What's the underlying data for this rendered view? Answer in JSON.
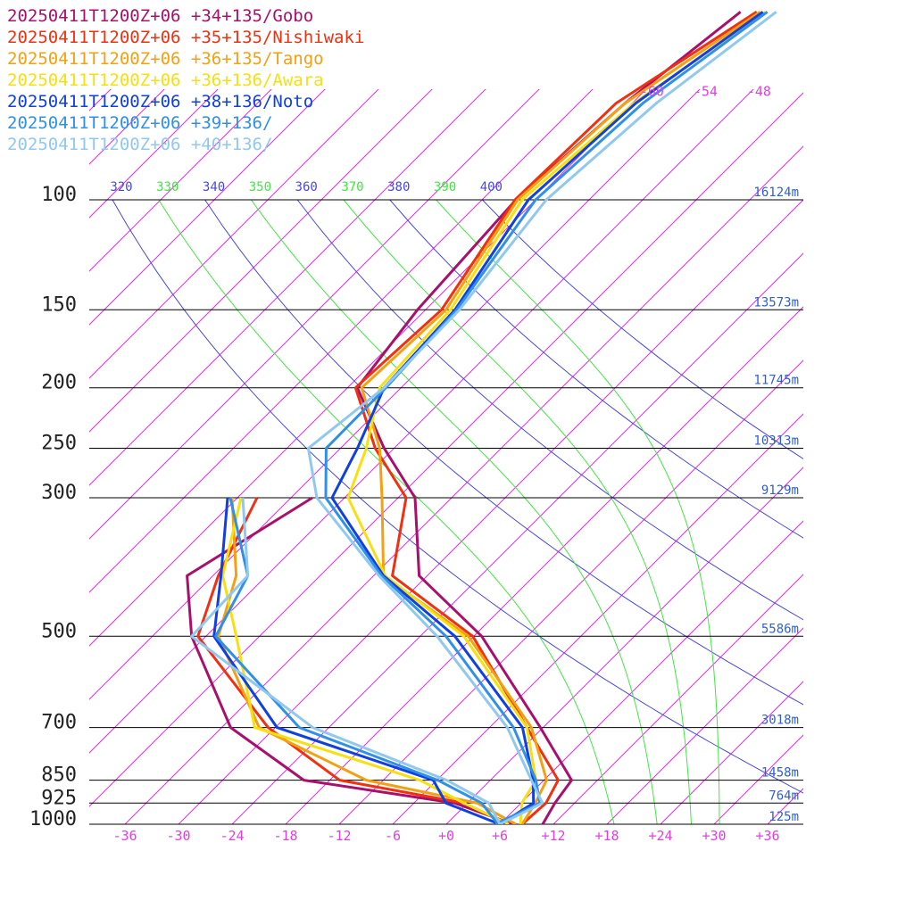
{
  "chart_data": {
    "type": "skewt",
    "pressure": [
      1000,
      925,
      850,
      700,
      500,
      400,
      300,
      250,
      200,
      150,
      100,
      70,
      50
    ],
    "series": [
      {
        "name": "20250411T1200Z+06 +34+135/Gobo",
        "color": "#a8106c",
        "values": [
          10.8,
          9.8,
          9.1,
          -0.3,
          -17.1,
          -30.9,
          -40.1,
          -49.1,
          -58.9,
          -60.9,
          -62.2,
          -60.8,
          -58.1
        ],
        "dewpoint": [
          7.5,
          -1.4,
          -20.9,
          -35,
          -49.6,
          -56.9,
          -51.6,
          null,
          null,
          null,
          null,
          null,
          null
        ]
      },
      {
        "name": "20250411T1200Z+06 +35+135/Nishiwaki",
        "color": "#f03010",
        "values": [
          8.5,
          8.8,
          7.6,
          -1.8,
          -18.1,
          -33.9,
          -41.1,
          -50.1,
          -59.1,
          -58.2,
          -62.3,
          -61.8,
          -56.3
        ],
        "dewpoint": [
          7,
          -0.4,
          -16.9,
          -30.8,
          -48.9,
          -53.4,
          -57.8,
          null,
          null,
          null,
          null,
          null,
          null
        ]
      },
      {
        "name": "20250411T1200Z+06 +36+135/Tango",
        "color": "#f5a010",
        "values": [
          8.5,
          7.6,
          6.3,
          -1.3,
          -18.6,
          -34.9,
          -43.8,
          -49.6,
          -58.4,
          -57.7,
          -62,
          -60.8,
          -55.9
        ],
        "dewpoint": [
          7.8,
          1.1,
          -13.9,
          -31.8,
          -46.6,
          -51.4,
          -60.6,
          null,
          null,
          null,
          null,
          null,
          null
        ]
      },
      {
        "name": "20250411T1200Z+06 +36+136/Awara",
        "color": "#f5e010",
        "values": [
          8.3,
          6.1,
          5.1,
          -1.8,
          -19.1,
          -34.7,
          -47.6,
          -51.1,
          -56.4,
          -57.2,
          -61.5,
          -59.8,
          -55.3
        ],
        "dewpoint": [
          7,
          -0.4,
          -7.9,
          -32.3,
          -44.6,
          -52.9,
          -59.6,
          null,
          null,
          null,
          null,
          null,
          null
        ]
      },
      {
        "name": "20250411T1200Z+06 +38+136/Noto",
        "color": "#1040e0",
        "values": [
          6,
          7.4,
          4.8,
          -2.3,
          -20.1,
          -34.9,
          -49.4,
          -52.1,
          -55.9,
          -56.7,
          -60.8,
          -59.6,
          -55.6
        ],
        "dewpoint": [
          6,
          -2.4,
          -6.4,
          -29.8,
          -47.1,
          -53.1,
          -61.1,
          null,
          null,
          null,
          null,
          null,
          null
        ]
      },
      {
        "name": "20250411T1200Z+06 +39+136/",
        "color": "#3090e8",
        "values": [
          5.5,
          8.1,
          5.1,
          -3.3,
          -21.1,
          -35.1,
          -50.1,
          -55.6,
          -55.7,
          -56.5,
          -60,
          -58.8,
          -55.1
        ],
        "dewpoint": [
          5.8,
          1.6,
          -5.9,
          -27.3,
          -46.9,
          -50.1,
          -60.8,
          null,
          null,
          null,
          null,
          null,
          null
        ]
      },
      {
        "name": "20250411T1200Z+06 +40+136/",
        "color": "#90c8f0",
        "values": [
          6,
          8.4,
          4.6,
          -4,
          -22.1,
          -35.4,
          -51.1,
          -57.6,
          -55.9,
          -56.2,
          -58.8,
          -57.3,
          -54.1
        ],
        "dewpoint": [
          6,
          2.4,
          -4.9,
          -25.8,
          -49.6,
          -50.1,
          -59.4,
          null,
          null,
          null,
          null,
          null,
          null
        ]
      }
    ],
    "ylim": [
      1000,
      100
    ],
    "yticks": [
      100,
      150,
      200,
      250,
      300,
      500,
      700,
      850,
      925,
      1000
    ],
    "height_labels": [
      "16124m",
      "13573m",
      "11745m",
      "10313m",
      "9129m",
      "5586m",
      "3018m",
      "1458m",
      "764m",
      "125m"
    ],
    "xlim": [
      -40,
      40
    ],
    "xticks": [
      -36,
      -30,
      -24,
      -18,
      -12,
      -6,
      {
        "value": 0,
        "label": "+0"
      },
      {
        "value": 6,
        "label": "+6"
      },
      {
        "value": 12,
        "label": "+12"
      },
      {
        "value": 18,
        "label": "+18"
      },
      {
        "value": 24,
        "label": "+24"
      },
      {
        "value": 30,
        "label": "+30"
      },
      {
        "value": 36,
        "label": "+36"
      }
    ],
    "isotherm_labels": [
      -60,
      -54,
      -48
    ],
    "dry_adiabats": [
      320,
      340,
      360,
      380,
      400
    ],
    "moist_adiabats": [
      330,
      350,
      370,
      390
    ],
    "dry_adiabat_color": "#4848e0",
    "moist_adiabat_color": "#40e840",
    "isotherm_color": "#e030e0",
    "grid": true
  }
}
